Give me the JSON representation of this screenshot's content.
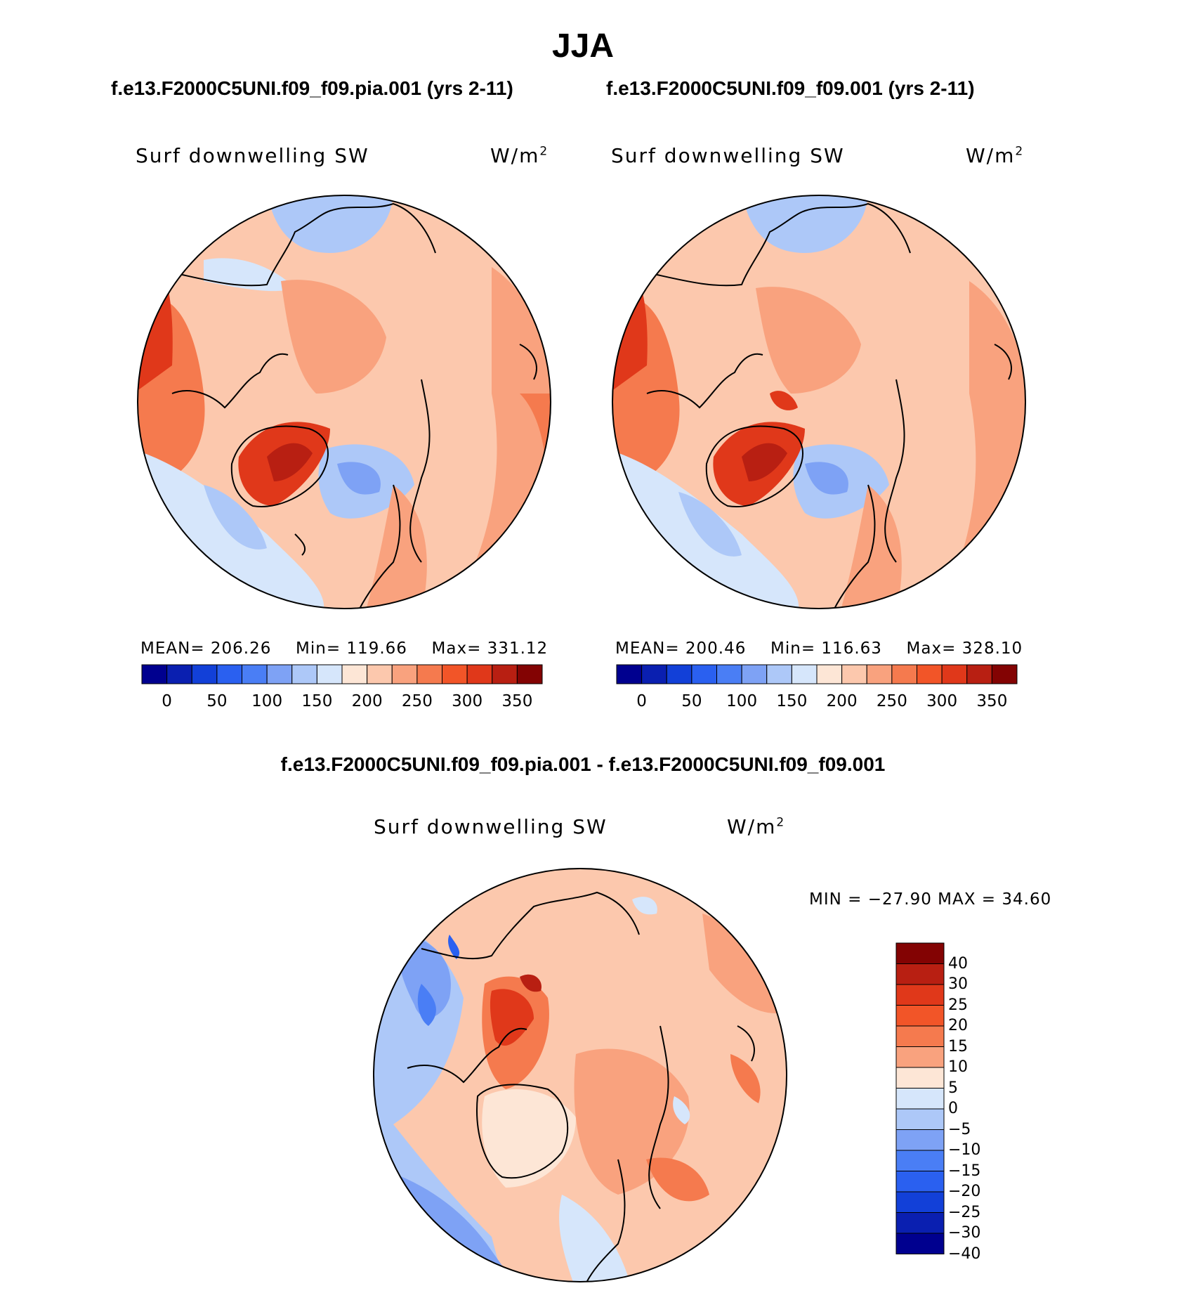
{
  "title": "JJA",
  "panels": [
    {
      "case_title": "f.e13.F2000C5UNI.f09_f09.pia.001 (yrs 2-11)",
      "variable": "Surf  downwelling  SW",
      "units": "W/m",
      "units_exp": "2",
      "stats": {
        "mean_label": "MEAN=",
        "mean": "206.26",
        "min_label": "Min=",
        "min": "119.66",
        "max_label": "Max=",
        "max": "331.12"
      }
    },
    {
      "case_title": "f.e13.F2000C5UNI.f09_f09.001 (yrs 2-11)",
      "variable": "Surf  downwelling  SW",
      "units": "W/m",
      "units_exp": "2",
      "stats": {
        "mean_label": "MEAN=",
        "mean": "200.46",
        "min_label": "Min=",
        "min": "116.63",
        "max_label": "Max=",
        "max": "328.10"
      }
    }
  ],
  "diff_panel": {
    "title": "f.e13.F2000C5UNI.f09_f09.pia.001 - f.e13.F2000C5UNI.f09_f09.001",
    "variable": "Surf  downwelling  SW",
    "units": "W/m",
    "units_exp": "2",
    "minmax": "MIN  =  −27.90  MAX  =    34.60"
  },
  "colorbar_abs": {
    "colors": [
      "#00008f",
      "#0a1fb0",
      "#1240d8",
      "#2a60f0",
      "#4a7ef5",
      "#7ea2f5",
      "#adc8f8",
      "#d6e6fb",
      "#fde6d6",
      "#fcc8ad",
      "#f9a27e",
      "#f57a4e",
      "#f25528",
      "#e0381a",
      "#b81f12",
      "#830303"
    ],
    "ticks": [
      "0",
      "50",
      "100",
      "150",
      "200",
      "250",
      "300",
      "350"
    ]
  },
  "colorbar_diff": {
    "colors": [
      "#830303",
      "#b81f12",
      "#e0381a",
      "#f25528",
      "#f57a4e",
      "#f9a27e",
      "#fde6d6",
      "#d6e6fb",
      "#adc8f8",
      "#7ea2f5",
      "#4a7ef5",
      "#2a60f0",
      "#1240d8",
      "#0a1fb0",
      "#00008f"
    ],
    "ticks": [
      "40",
      "30",
      "25",
      "20",
      "15",
      "10",
      "5",
      "0",
      "−5",
      "−10",
      "−15",
      "−20",
      "−25",
      "−30",
      "−40"
    ]
  }
}
